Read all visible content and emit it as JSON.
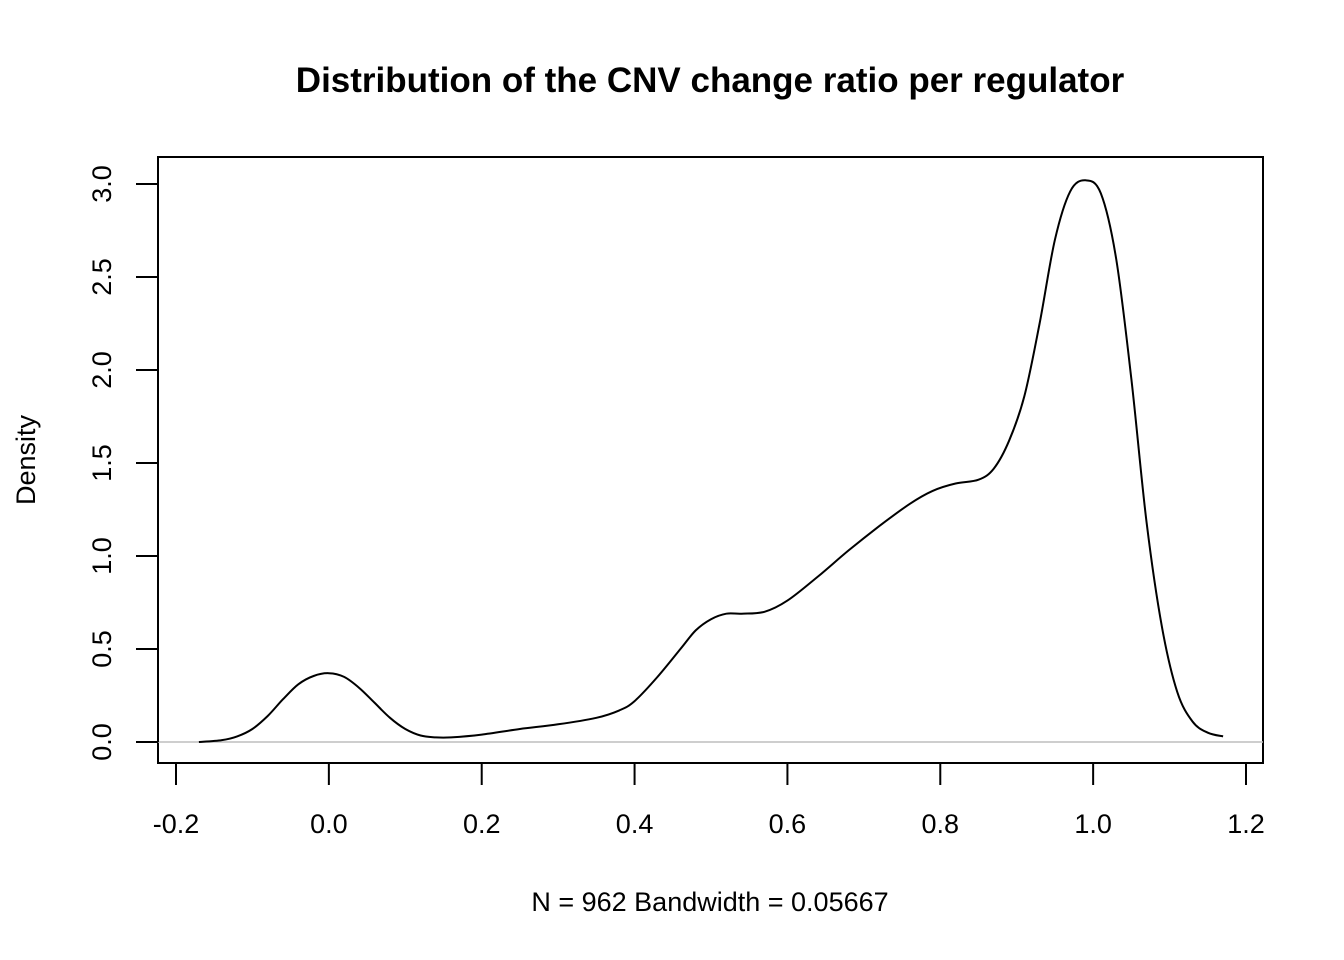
{
  "chart_data": {
    "type": "line",
    "title": "Distribution of the CNV change ratio per regulator",
    "xlabel": "N = 962   Bandwidth = 0.05667",
    "ylabel": "Density",
    "xlim": [
      -0.2,
      1.2
    ],
    "ylim": [
      0,
      3.0
    ],
    "x_ticks": [
      -0.2,
      0.0,
      0.2,
      0.4,
      0.6,
      0.8,
      1.0,
      1.2
    ],
    "x_tick_labels": [
      "-0.2",
      "0.0",
      "0.2",
      "0.4",
      "0.6",
      "0.8",
      "1.0",
      "1.2"
    ],
    "y_ticks": [
      0.0,
      0.5,
      1.0,
      1.5,
      2.0,
      2.5,
      3.0
    ],
    "y_tick_labels": [
      "0.0",
      "0.5",
      "1.0",
      "1.5",
      "2.0",
      "2.5",
      "3.0"
    ],
    "grid": false,
    "baseline": 0,
    "line_color": "#000000",
    "baseline_color": "#bebebe",
    "series": [
      {
        "x": [
          -0.17,
          -0.14,
          -0.12,
          -0.1,
          -0.08,
          -0.06,
          -0.04,
          -0.02,
          0.0,
          0.02,
          0.04,
          0.06,
          0.08,
          0.1,
          0.12,
          0.14,
          0.16,
          0.2,
          0.25,
          0.3,
          0.35,
          0.38,
          0.4,
          0.43,
          0.46,
          0.48,
          0.5,
          0.52,
          0.54,
          0.57,
          0.6,
          0.64,
          0.68,
          0.72,
          0.76,
          0.79,
          0.82,
          0.85,
          0.87,
          0.89,
          0.91,
          0.93,
          0.95,
          0.97,
          0.99,
          1.01,
          1.03,
          1.05,
          1.07,
          1.09,
          1.11,
          1.13,
          1.15,
          1.17
        ],
        "y": [
          0.0,
          0.01,
          0.03,
          0.07,
          0.14,
          0.23,
          0.31,
          0.355,
          0.37,
          0.35,
          0.29,
          0.21,
          0.13,
          0.07,
          0.035,
          0.025,
          0.025,
          0.04,
          0.07,
          0.095,
          0.13,
          0.17,
          0.22,
          0.35,
          0.5,
          0.6,
          0.66,
          0.69,
          0.69,
          0.7,
          0.76,
          0.89,
          1.03,
          1.16,
          1.28,
          1.35,
          1.39,
          1.41,
          1.47,
          1.62,
          1.86,
          2.25,
          2.7,
          2.96,
          3.02,
          2.95,
          2.6,
          1.95,
          1.18,
          0.62,
          0.27,
          0.11,
          0.05,
          0.03
        ]
      }
    ]
  }
}
